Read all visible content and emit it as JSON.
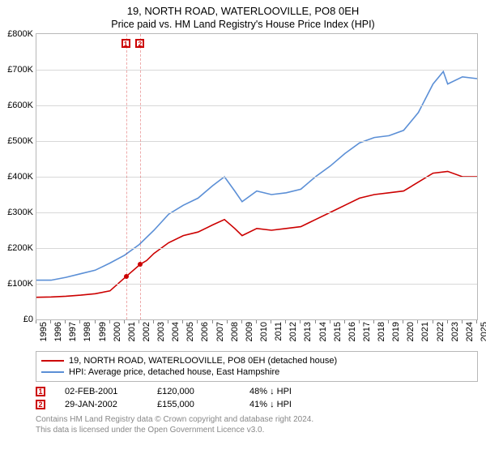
{
  "title": "19, NORTH ROAD, WATERLOOVILLE, PO8 0EH",
  "subtitle": "Price paid vs. HM Land Registry's House Price Index (HPI)",
  "chart": {
    "type": "line",
    "background_color": "#ffffff",
    "grid_color": "#d8d8d8",
    "border_color": "#b8b8b8",
    "xlim": [
      1995,
      2025
    ],
    "ylim": [
      0,
      800000
    ],
    "ytick_step": 100000,
    "yticks": [
      "£0",
      "£100K",
      "£200K",
      "£300K",
      "£400K",
      "£500K",
      "£600K",
      "£700K",
      "£800K"
    ],
    "xticks": [
      "1995",
      "1996",
      "1997",
      "1998",
      "1999",
      "2000",
      "2001",
      "2002",
      "2003",
      "2004",
      "2005",
      "2006",
      "2007",
      "2008",
      "2009",
      "2010",
      "2011",
      "2012",
      "2013",
      "2014",
      "2015",
      "2016",
      "2017",
      "2018",
      "2019",
      "2020",
      "2021",
      "2022",
      "2023",
      "2024",
      "2025"
    ],
    "title_fontsize": 13,
    "label_fontsize": 11,
    "line_width": 1.6,
    "series": [
      {
        "name": "price_paid",
        "color": "#cc0000",
        "points": [
          [
            1995,
            62000
          ],
          [
            1996,
            63000
          ],
          [
            1997,
            65000
          ],
          [
            1998,
            68000
          ],
          [
            1999,
            72000
          ],
          [
            2000,
            80000
          ],
          [
            2001.1,
            120000
          ],
          [
            2002.08,
            155000
          ],
          [
            2002.5,
            165000
          ],
          [
            2003,
            185000
          ],
          [
            2004,
            215000
          ],
          [
            2005,
            235000
          ],
          [
            2006,
            245000
          ],
          [
            2007,
            265000
          ],
          [
            2007.8,
            280000
          ],
          [
            2008.5,
            255000
          ],
          [
            2009,
            235000
          ],
          [
            2010,
            255000
          ],
          [
            2011,
            250000
          ],
          [
            2012,
            255000
          ],
          [
            2013,
            260000
          ],
          [
            2014,
            280000
          ],
          [
            2015,
            300000
          ],
          [
            2016,
            320000
          ],
          [
            2017,
            340000
          ],
          [
            2018,
            350000
          ],
          [
            2019,
            355000
          ],
          [
            2020,
            360000
          ],
          [
            2021,
            385000
          ],
          [
            2022,
            410000
          ],
          [
            2023,
            415000
          ],
          [
            2024,
            400000
          ],
          [
            2025,
            400000
          ]
        ]
      },
      {
        "name": "hpi",
        "color": "#5b8fd6",
        "points": [
          [
            1995,
            110000
          ],
          [
            1996,
            110000
          ],
          [
            1997,
            118000
          ],
          [
            1998,
            128000
          ],
          [
            1999,
            138000
          ],
          [
            2000,
            158000
          ],
          [
            2001,
            180000
          ],
          [
            2002,
            210000
          ],
          [
            2003,
            250000
          ],
          [
            2004,
            295000
          ],
          [
            2005,
            320000
          ],
          [
            2006,
            340000
          ],
          [
            2007,
            375000
          ],
          [
            2007.8,
            400000
          ],
          [
            2008.5,
            360000
          ],
          [
            2009,
            330000
          ],
          [
            2010,
            360000
          ],
          [
            2011,
            350000
          ],
          [
            2012,
            355000
          ],
          [
            2013,
            365000
          ],
          [
            2014,
            400000
          ],
          [
            2015,
            430000
          ],
          [
            2016,
            465000
          ],
          [
            2017,
            495000
          ],
          [
            2018,
            510000
          ],
          [
            2019,
            515000
          ],
          [
            2020,
            530000
          ],
          [
            2021,
            580000
          ],
          [
            2022,
            660000
          ],
          [
            2022.7,
            695000
          ],
          [
            2023,
            660000
          ],
          [
            2024,
            680000
          ],
          [
            2025,
            675000
          ]
        ]
      }
    ],
    "sale_markers": [
      {
        "n": "1",
        "x": 2001.1,
        "y": 120000,
        "color": "#cc0000"
      },
      {
        "n": "2",
        "x": 2002.08,
        "y": 155000,
        "color": "#cc0000"
      }
    ]
  },
  "legend": {
    "items": [
      {
        "color": "#cc0000",
        "label": "19, NORTH ROAD, WATERLOOVILLE, PO8 0EH (detached house)"
      },
      {
        "color": "#5b8fd6",
        "label": "HPI: Average price, detached house, East Hampshire"
      }
    ]
  },
  "sales": [
    {
      "n": "1",
      "color": "#cc0000",
      "date": "02-FEB-2001",
      "price": "£120,000",
      "delta": "48% ↓ HPI"
    },
    {
      "n": "2",
      "color": "#cc0000",
      "date": "29-JAN-2002",
      "price": "£155,000",
      "delta": "41% ↓ HPI"
    }
  ],
  "footer": {
    "line1": "Contains HM Land Registry data © Crown copyright and database right 2024.",
    "line2": "This data is licensed under the Open Government Licence v3.0."
  }
}
